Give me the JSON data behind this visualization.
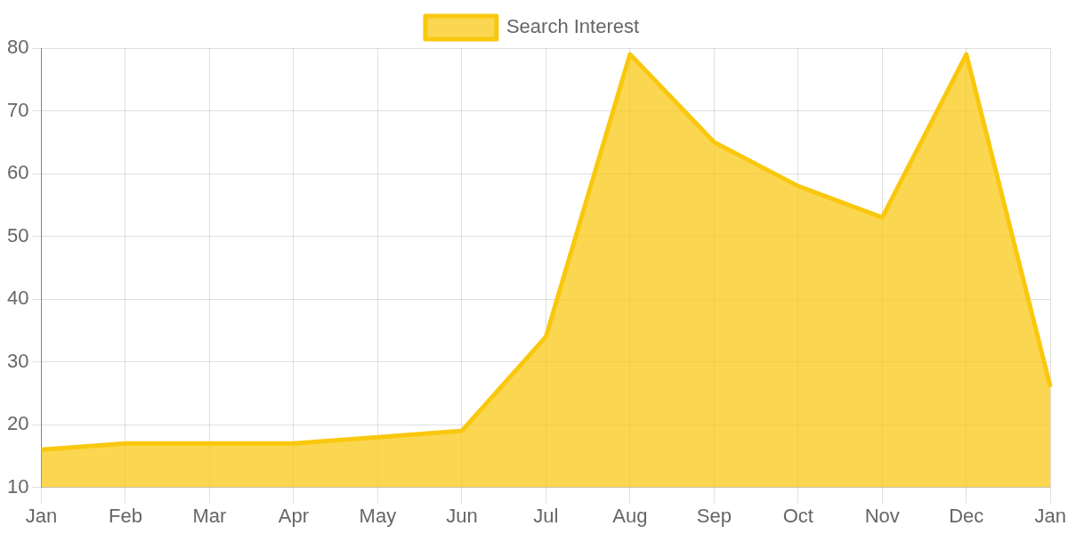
{
  "chart_data": {
    "type": "area",
    "categories": [
      "Jan",
      "Feb",
      "Mar",
      "Apr",
      "May",
      "Jun",
      "Jul",
      "Aug",
      "Sep",
      "Oct",
      "Nov",
      "Dec",
      "Jan"
    ],
    "series": [
      {
        "name": "Search Interest",
        "color": "#f9c80e",
        "values": [
          16,
          17,
          17,
          17,
          18,
          19,
          34,
          79,
          65,
          58,
          53,
          79,
          26
        ]
      }
    ],
    "ylim": [
      10,
      80
    ],
    "yticks": [
      10,
      20,
      30,
      40,
      50,
      60,
      70,
      80
    ],
    "grid": true,
    "legend": "top",
    "marker": "none"
  }
}
